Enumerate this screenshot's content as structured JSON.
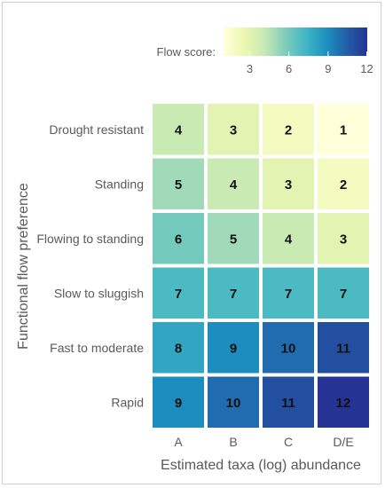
{
  "chart_data": {
    "type": "heatmap",
    "title": "",
    "xlabel": "Estimated taxa (log) abundance",
    "ylabel": "Functional flow preference",
    "x_categories": [
      "A",
      "B",
      "C",
      "D/E"
    ],
    "y_categories": [
      "Drought resistant",
      "Standing",
      "Flowing to standing",
      "Slow to sluggish",
      "Fast to moderate",
      "Rapid"
    ],
    "values": [
      [
        4,
        3,
        2,
        1
      ],
      [
        5,
        4,
        3,
        2
      ],
      [
        6,
        5,
        4,
        3
      ],
      [
        7,
        7,
        7,
        7
      ],
      [
        8,
        9,
        10,
        11
      ],
      [
        9,
        10,
        11,
        12
      ]
    ],
    "legend": {
      "title": "Flow score:",
      "position": "top-right",
      "range": [
        1,
        12
      ],
      "ticks": [
        3,
        6,
        9,
        12
      ]
    },
    "colorscale": [
      "#ffffd9",
      "#edf8b1",
      "#c7e9b4",
      "#7fcdbb",
      "#41b6c4",
      "#1d91c0",
      "#225ea8",
      "#253494"
    ],
    "grid": false
  }
}
